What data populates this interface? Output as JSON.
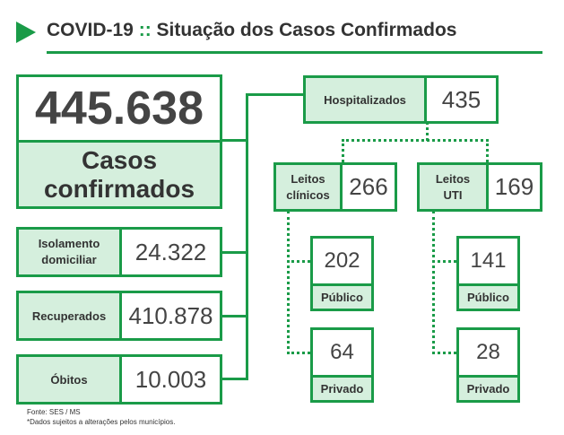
{
  "header": {
    "title": "COVID-19",
    "separator": "::",
    "subtitle": "Situação dos Casos Confirmados"
  },
  "total": {
    "value": "445.638",
    "label_line1": "Casos",
    "label_line2": "confirmados"
  },
  "isolamento": {
    "label_line1": "Isolamento",
    "label_line2": "domiciliar",
    "value": "24.322"
  },
  "recuperados": {
    "label": "Recuperados",
    "value": "410.878"
  },
  "obitos": {
    "label": "Óbitos",
    "value": "10.003"
  },
  "hospitalizados": {
    "label": "Hospitalizados",
    "value": "435"
  },
  "leitos_clinicos": {
    "label_line1": "Leitos",
    "label_line2": "clínicos",
    "value": "266",
    "publico": {
      "value": "202",
      "label": "Público"
    },
    "privado": {
      "value": "64",
      "label": "Privado"
    }
  },
  "leitos_uti": {
    "label_line1": "Leitos",
    "label_line2": "UTI",
    "value": "169",
    "publico": {
      "value": "141",
      "label": "Público"
    },
    "privado": {
      "value": "28",
      "label": "Privado"
    }
  },
  "footnotes": {
    "source": "Fonte: SES / MS",
    "note": "*Dados sujeitos a alterações pelos municípios."
  },
  "colors": {
    "accent": "#1a9b48",
    "label_fill": "#d5efdd",
    "text": "#333333"
  }
}
